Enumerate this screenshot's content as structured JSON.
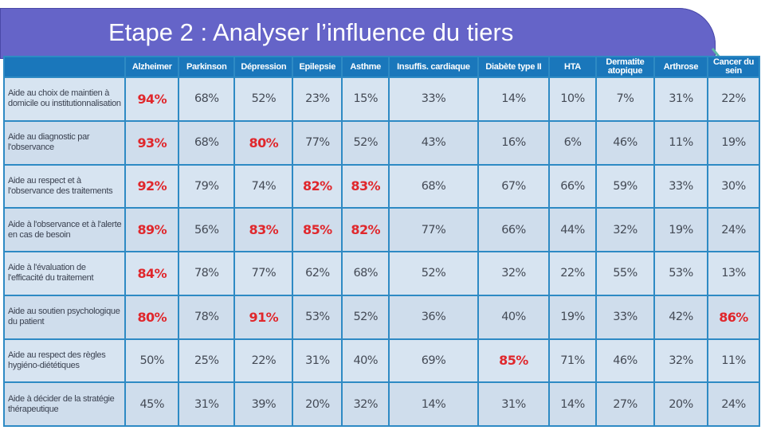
{
  "slide": {
    "title": "Etape 2 : Analyser l’influence du tiers"
  },
  "colors": {
    "title_bar": "#6564c8",
    "header": "#1a77bb",
    "cell": "#d7e4f1",
    "highlight": "#e0272c",
    "grid": "#2e8ac4"
  },
  "table": {
    "columns": [
      "Alzheimer",
      "Parkinson",
      "Dépression",
      "Epilepsie",
      "Asthme",
      "Insuffis. cardiaque",
      "Diabète type II",
      "HTA",
      "Dermatite atopique",
      "Arthrose",
      "Cancer du sein"
    ],
    "rows": [
      {
        "label": "Aide au choix de maintien à domicile ou institutionnalisation",
        "values": [
          "94%",
          "68%",
          "52%",
          "23%",
          "15%",
          "33%",
          "14%",
          "10%",
          "7%",
          "31%",
          "22%"
        ],
        "highlight": [
          0
        ]
      },
      {
        "label": "Aide au diagnostic par l'observance",
        "values": [
          "93%",
          "68%",
          "80%",
          "77%",
          "52%",
          "43%",
          "16%",
          "6%",
          "46%",
          "11%",
          "19%"
        ],
        "highlight": [
          0,
          2
        ]
      },
      {
        "label": "Aide au respect et à l'observance des traitements",
        "values": [
          "92%",
          "79%",
          "74%",
          "82%",
          "83%",
          "68%",
          "67%",
          "66%",
          "59%",
          "33%",
          "30%"
        ],
        "highlight": [
          0,
          3,
          4
        ]
      },
      {
        "label": "Aide à l'observance et à l'alerte en cas de besoin",
        "values": [
          "89%",
          "56%",
          "83%",
          "85%",
          "82%",
          "77%",
          "66%",
          "44%",
          "32%",
          "19%",
          "24%"
        ],
        "highlight": [
          0,
          2,
          3,
          4
        ]
      },
      {
        "label": "Aide à l'évaluation de l'efficacité du traitement",
        "values": [
          "84%",
          "78%",
          "77%",
          "62%",
          "68%",
          "52%",
          "32%",
          "22%",
          "55%",
          "53%",
          "13%"
        ],
        "highlight": [
          0
        ]
      },
      {
        "label": "Aide au soutien psychologique du patient",
        "values": [
          "80%",
          "78%",
          "91%",
          "53%",
          "52%",
          "36%",
          "40%",
          "19%",
          "33%",
          "42%",
          "86%"
        ],
        "highlight": [
          0,
          2,
          10
        ]
      },
      {
        "label": "Aide au respect des règles hygiéno-diététiques",
        "values": [
          "50%",
          "25%",
          "22%",
          "31%",
          "40%",
          "69%",
          "85%",
          "71%",
          "46%",
          "32%",
          "11%"
        ],
        "highlight": [
          6
        ]
      },
      {
        "label": "Aide à décider de la stratégie thérapeutique",
        "values": [
          "45%",
          "31%",
          "39%",
          "20%",
          "32%",
          "14%",
          "31%",
          "14%",
          "27%",
          "20%",
          "24%"
        ],
        "highlight": []
      }
    ]
  }
}
